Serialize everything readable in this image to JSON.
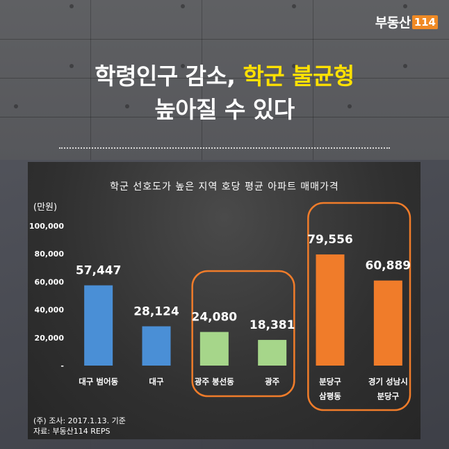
{
  "brand": {
    "name": "부동산",
    "number": "114"
  },
  "headline": {
    "line1_prefix": "학령인구 감소,",
    "line1_highlight": "학군 불균형",
    "line2": "높아질 수 있다"
  },
  "colors": {
    "highlight": "#ffe100",
    "bar_blue": "#4a8fd6",
    "bar_green": "#a6d68a",
    "bar_orange": "#f07c2a",
    "group_outline": "#f07c2a"
  },
  "chart_data": {
    "type": "bar",
    "title": "학군 선호도가 높은 지역 호당 평균 아파트 매매가격",
    "ylabel": "(만원)",
    "ylim": [
      0,
      100000
    ],
    "yticks": [
      "-",
      "20,000",
      "40,000",
      "60,000",
      "80,000",
      "100,000"
    ],
    "categories": [
      {
        "lines": [
          "대구 범어동"
        ],
        "value": 57447,
        "label": "57,447",
        "color": "blue"
      },
      {
        "lines": [
          "대구"
        ],
        "value": 28124,
        "label": "28,124",
        "color": "blue"
      },
      {
        "lines": [
          "광주 봉선동"
        ],
        "value": 24080,
        "label": "24,080",
        "color": "green"
      },
      {
        "lines": [
          "광주"
        ],
        "value": 18381,
        "label": "18,381",
        "color": "green"
      },
      {
        "lines": [
          "분당구",
          "삼평동"
        ],
        "value": 79556,
        "label": "79,556",
        "color": "orange"
      },
      {
        "lines": [
          "경기 성남시",
          "분당구"
        ],
        "value": 60889,
        "label": "60,889",
        "color": "orange"
      }
    ],
    "highlight_groups": [
      [
        2,
        3
      ],
      [
        4,
        5
      ]
    ]
  },
  "notes": {
    "survey": "(주) 조사: 2017.1.13. 기준",
    "source": "자료: 부동산114 REPS"
  }
}
